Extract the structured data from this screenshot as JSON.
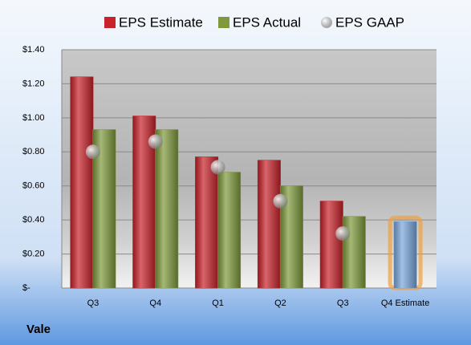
{
  "chart_data": {
    "type": "bar",
    "categories": [
      "Q3",
      "Q4",
      "Q1",
      "Q2",
      "Q3",
      "Q4 Estimate"
    ],
    "series": [
      {
        "name": "EPS Estimate",
        "color": "#c8232b",
        "estimate_color": "#7aa6dc",
        "values": [
          1.24,
          1.01,
          0.77,
          0.75,
          0.51,
          0.39
        ]
      },
      {
        "name": "EPS Actual",
        "color": "#7f9a3c",
        "values": [
          0.93,
          0.93,
          0.68,
          0.6,
          0.42,
          null
        ]
      },
      {
        "name": "EPS GAAP",
        "color": "#a0a0a0",
        "marker": "circle",
        "values": [
          0.8,
          0.86,
          0.71,
          0.51,
          0.32,
          null
        ]
      }
    ],
    "ylim": [
      0,
      1.4
    ],
    "yticks": [
      {
        "value": 0,
        "label": "$-"
      },
      {
        "value": 0.2,
        "label": "$0.20"
      },
      {
        "value": 0.4,
        "label": "$0.40"
      },
      {
        "value": 0.6,
        "label": "$0.60"
      },
      {
        "value": 0.8,
        "label": "$0.80"
      },
      {
        "value": 1.0,
        "label": "$1.00"
      },
      {
        "value": 1.2,
        "label": "$1.20"
      },
      {
        "value": 1.4,
        "label": "$1.40"
      }
    ],
    "grid": true,
    "legend": "top",
    "footer": "Vale"
  }
}
